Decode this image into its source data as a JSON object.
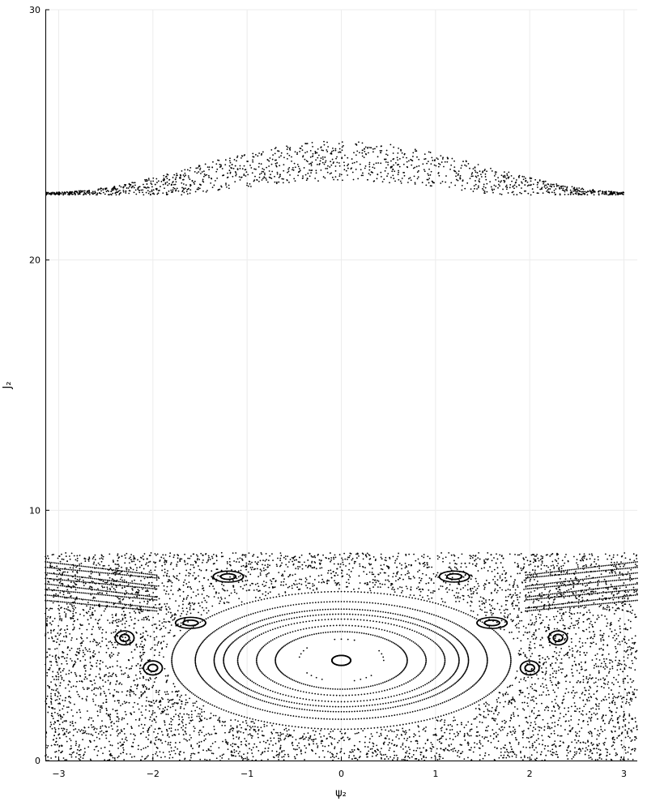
{
  "chart_data": {
    "type": "scatter",
    "title": "",
    "xlabel": "ψ₂",
    "ylabel": "J₂",
    "xlim": [
      -3.14159,
      3.14159
    ],
    "ylim": [
      0,
      30
    ],
    "x_ticks": [
      -3,
      -2,
      -1,
      0,
      1,
      2,
      3
    ],
    "y_ticks": [
      0,
      10,
      20,
      30
    ],
    "x_tick_labels": [
      "−3",
      "−2",
      "−1",
      "0",
      "1",
      "2",
      "3"
    ],
    "y_tick_labels": [
      "0",
      "10",
      "20",
      "30"
    ],
    "grid": true,
    "legend": "none",
    "marker_color": "#000000",
    "series": [
      {
        "description_kind": "resonance island",
        "center": [
          0.0,
          4.0
        ],
        "orbits": [
          {
            "semi_axis_psi": 0.1,
            "semi_axis_J": 0.2,
            "points": 160
          },
          {
            "semi_axis_psi": 0.45,
            "semi_axis_J": 0.85,
            "points": 40,
            "dashed": true
          },
          {
            "semi_axis_psi": 0.7,
            "semi_axis_J": 1.15,
            "points": 170
          },
          {
            "semi_axis_psi": 0.9,
            "semi_axis_J": 1.4,
            "points": 170
          },
          {
            "semi_axis_psi": 1.1,
            "semi_axis_J": 1.65,
            "points": 200
          },
          {
            "semi_axis_psi": 1.25,
            "semi_axis_J": 1.85,
            "points": 260
          },
          {
            "semi_axis_psi": 1.35,
            "semi_axis_J": 2.05,
            "points": 300
          },
          {
            "semi_axis_psi": 1.55,
            "semi_axis_J": 2.35,
            "points": 320
          },
          {
            "semi_axis_psi": 1.8,
            "semi_axis_J": 2.75,
            "points": 320
          }
        ]
      },
      {
        "description_kind": "secondary islands",
        "centers": [
          [
            -2.3,
            4.9
          ],
          [
            2.3,
            4.9
          ],
          [
            -2.0,
            3.7
          ],
          [
            2.0,
            3.7
          ],
          [
            -1.6,
            5.5
          ],
          [
            1.6,
            5.5
          ],
          [
            -1.2,
            7.35
          ],
          [
            1.2,
            7.35
          ]
        ]
      },
      {
        "description_kind": "chaotic sea",
        "J_range": [
          0,
          8.3
        ],
        "points": 5200
      },
      {
        "description_kind": "upper band",
        "J_range": [
          22.6,
          24.8
        ],
        "psi_range": [
          -3.14,
          3.0
        ],
        "points": 1400
      }
    ]
  }
}
